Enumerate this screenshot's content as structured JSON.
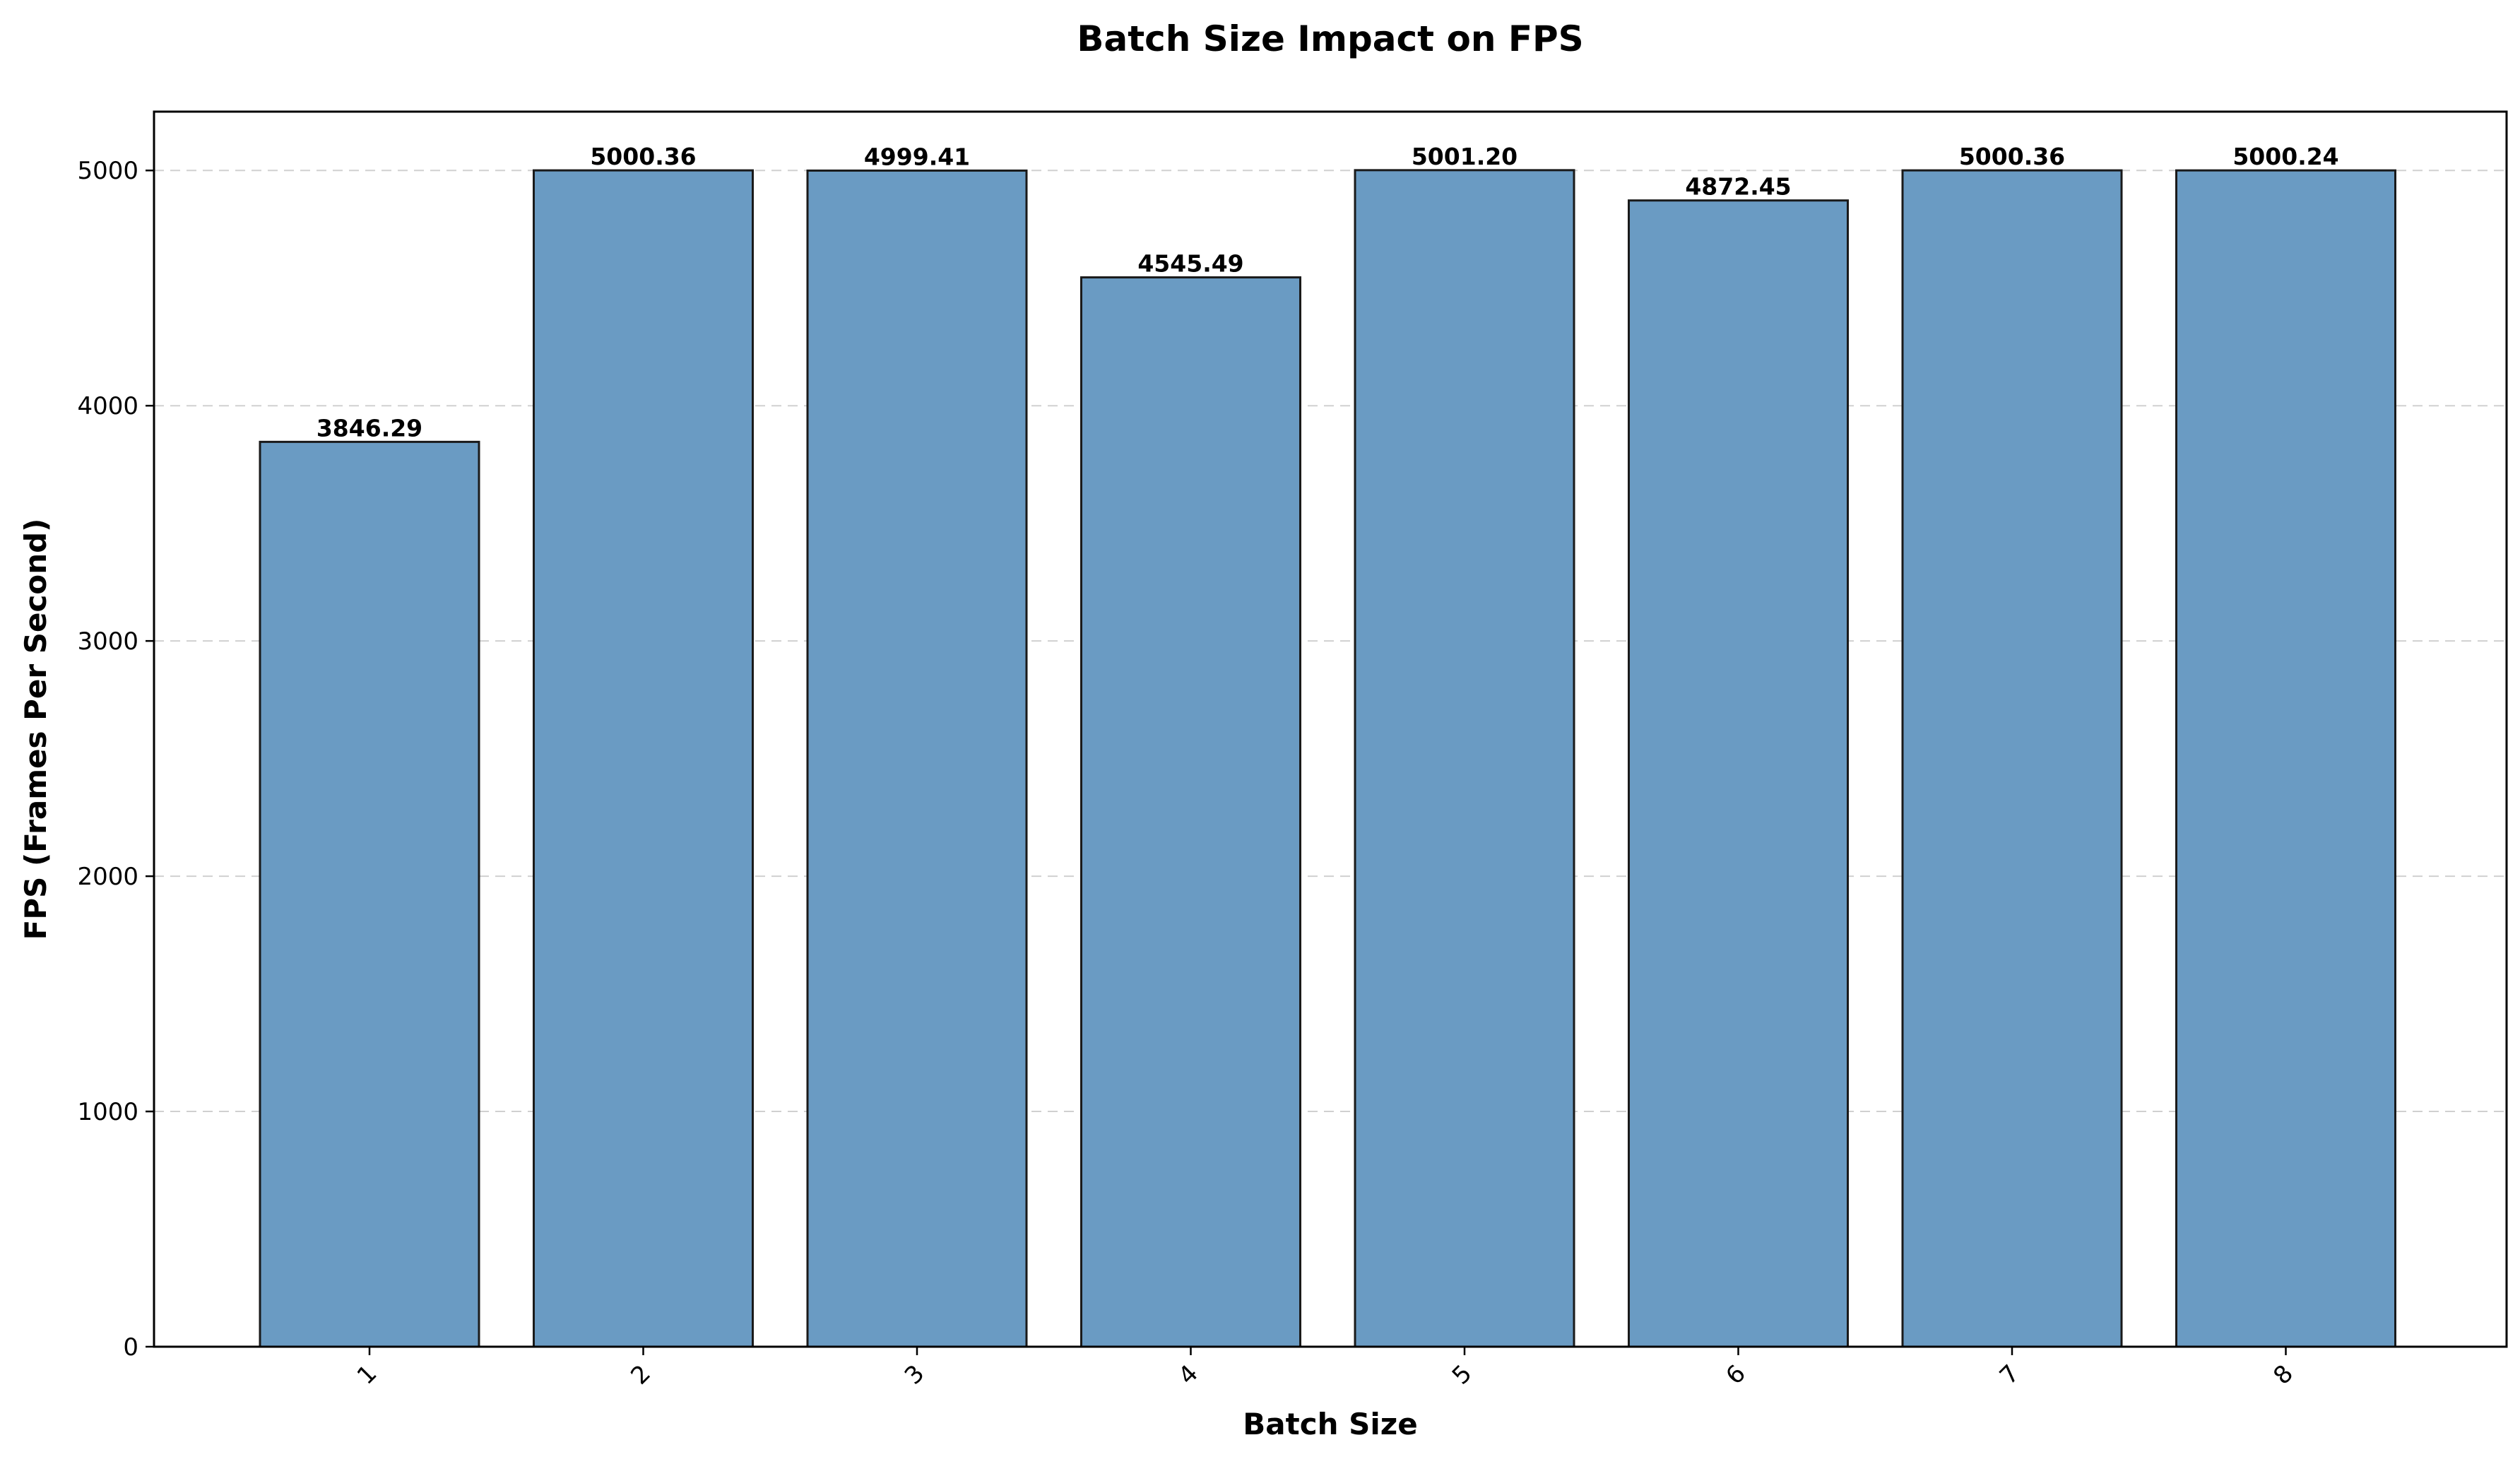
{
  "chart_data": {
    "type": "bar",
    "title": "Batch Size Impact on FPS",
    "xlabel": "Batch Size",
    "ylabel": "FPS (Frames Per Second)",
    "categories": [
      "1",
      "2",
      "3",
      "4",
      "5",
      "6",
      "7",
      "8"
    ],
    "values": [
      3846.29,
      5000.36,
      4999.41,
      4545.49,
      5001.2,
      4872.45,
      5000.36,
      5000.24
    ],
    "value_labels": [
      "3846.29",
      "5000.36",
      "4999.41",
      "4545.49",
      "5001.20",
      "4872.45",
      "5000.36",
      "5000.24"
    ],
    "yticks": [
      0,
      1000,
      2000,
      3000,
      4000,
      5000
    ],
    "ylim": [
      0,
      5250
    ],
    "grid": "y, dashed",
    "legend": "none",
    "x_tick_rotation_deg": 45,
    "bar_color": "#6a9bc3",
    "bar_edge_color": "#1a1a1a"
  }
}
